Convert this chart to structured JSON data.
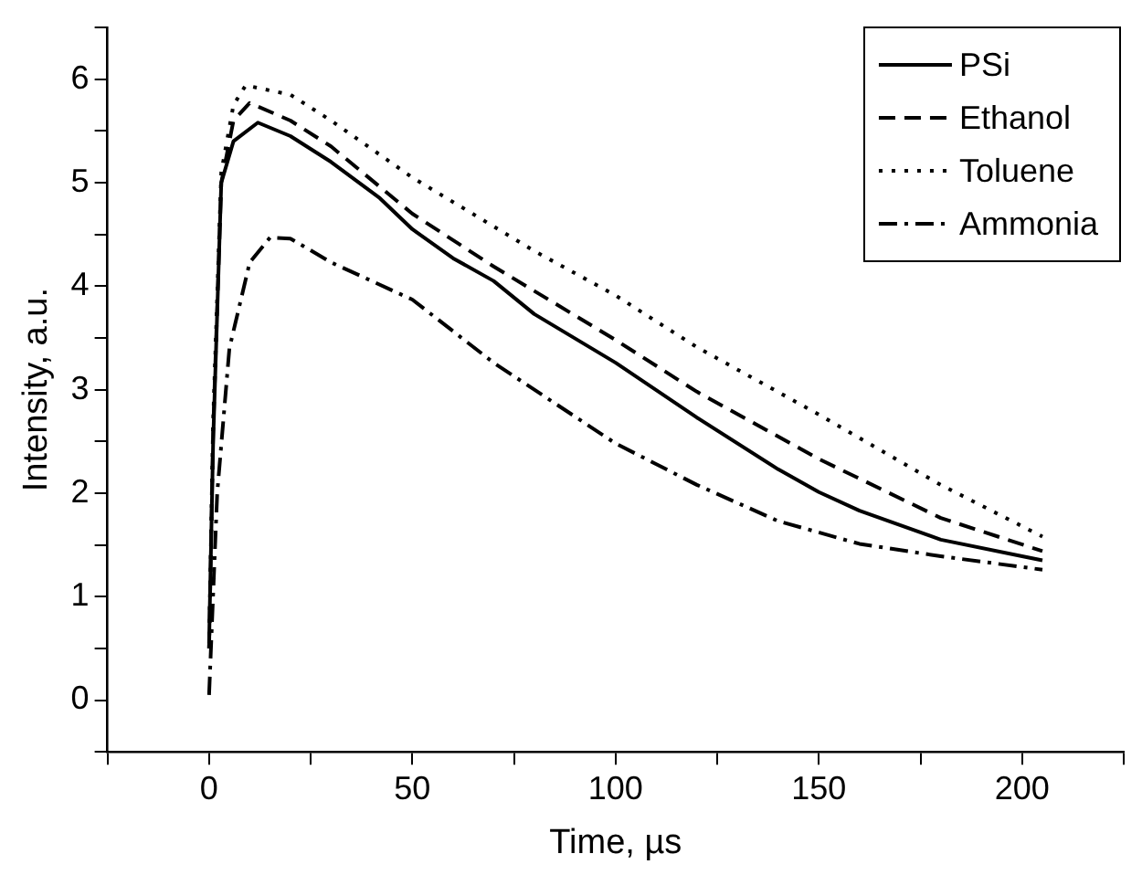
{
  "chart_data": {
    "type": "line",
    "xlabel": "Time, µs",
    "ylabel": "Intensity, a.u.",
    "xlim": [
      -25,
      225
    ],
    "xticks": [
      {
        "value": -25,
        "label": null
      },
      0,
      {
        "value": 25,
        "label": null
      },
      50,
      {
        "value": 75,
        "label": null
      },
      100,
      {
        "value": 125,
        "label": null
      },
      150,
      {
        "value": 175,
        "label": null
      },
      200,
      {
        "value": 225,
        "label": null
      }
    ],
    "ylim": [
      -0.5,
      6.5
    ],
    "yticks": [
      {
        "value": -0.5,
        "label": null
      },
      0,
      {
        "value": 0.5,
        "label": null
      },
      1,
      {
        "value": 1.5,
        "label": null
      },
      2,
      {
        "value": 2.5,
        "label": null
      },
      3,
      {
        "value": 3.5,
        "label": null
      },
      4,
      {
        "value": 4.5,
        "label": null
      },
      5,
      {
        "value": 5.5,
        "label": null
      },
      6,
      {
        "value": 6.5,
        "label": null
      }
    ],
    "grid": false,
    "legend": "top right",
    "marker": "none",
    "series": [
      {
        "name": "PSi",
        "color": "#000000",
        "line_style": "solid",
        "x": [
          0,
          1,
          3,
          6,
          12,
          20,
          30,
          42,
          50,
          60,
          70,
          80,
          100,
          120,
          140,
          150,
          160,
          180,
          200,
          205
        ],
        "values": [
          0.55,
          2.5,
          5.0,
          5.4,
          5.58,
          5.45,
          5.2,
          4.85,
          4.55,
          4.27,
          4.05,
          3.73,
          3.26,
          2.73,
          2.23,
          2.01,
          1.83,
          1.55,
          1.39,
          1.35
        ]
      },
      {
        "name": "Ethanol",
        "color": "#000000",
        "line_style": "dashed",
        "x": [
          0,
          1,
          3,
          6,
          10,
          20,
          30,
          50,
          70,
          100,
          120,
          150,
          180,
          205
        ],
        "values": [
          0.5,
          2.6,
          5.0,
          5.6,
          5.77,
          5.6,
          5.35,
          4.7,
          4.19,
          3.48,
          2.98,
          2.33,
          1.76,
          1.44
        ]
      },
      {
        "name": "Toluene",
        "color": "#000000",
        "line_style": "dotted",
        "x": [
          0,
          1,
          3,
          6,
          9,
          20,
          30,
          50,
          80,
          100,
          120,
          150,
          180,
          205
        ],
        "values": [
          0.5,
          2.7,
          5.1,
          5.75,
          5.94,
          5.85,
          5.6,
          5.05,
          4.34,
          3.91,
          3.41,
          2.76,
          2.08,
          1.58
        ]
      },
      {
        "name": "Ammonia",
        "color": "#000000",
        "line_style": "dashdot",
        "x": [
          0,
          2,
          5,
          10,
          15,
          20,
          30,
          50,
          70,
          100,
          120,
          140,
          160,
          180,
          205
        ],
        "values": [
          0.05,
          2.0,
          3.4,
          4.23,
          4.47,
          4.46,
          4.23,
          3.87,
          3.26,
          2.48,
          2.08,
          1.73,
          1.51,
          1.39,
          1.26
        ]
      }
    ]
  }
}
